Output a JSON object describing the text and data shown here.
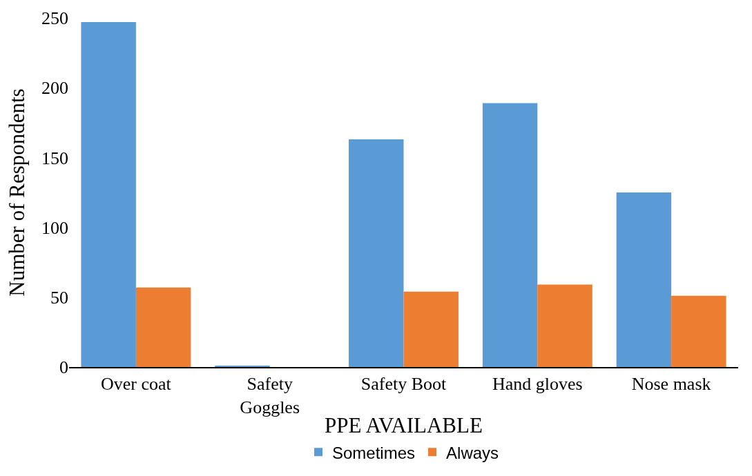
{
  "chart_data": {
    "type": "bar",
    "xlabel": "PPE AVAILABLE",
    "ylabel": "Number of Respondents",
    "categories": [
      "Over coat",
      "Safety Goggles",
      "Safety Boot",
      "Hand gloves",
      "Nose mask"
    ],
    "series": [
      {
        "name": "Sometimes",
        "color": "#5b9bd5",
        "values": [
          247,
          1,
          163,
          189,
          125
        ]
      },
      {
        "name": "Always",
        "color": "#ed7d31",
        "values": [
          57,
          0,
          54,
          59,
          51
        ]
      }
    ],
    "ylim": [
      0,
      250
    ],
    "yticks": [
      0,
      50,
      100,
      150,
      200,
      250
    ],
    "grid": false,
    "legend": "bottom"
  }
}
